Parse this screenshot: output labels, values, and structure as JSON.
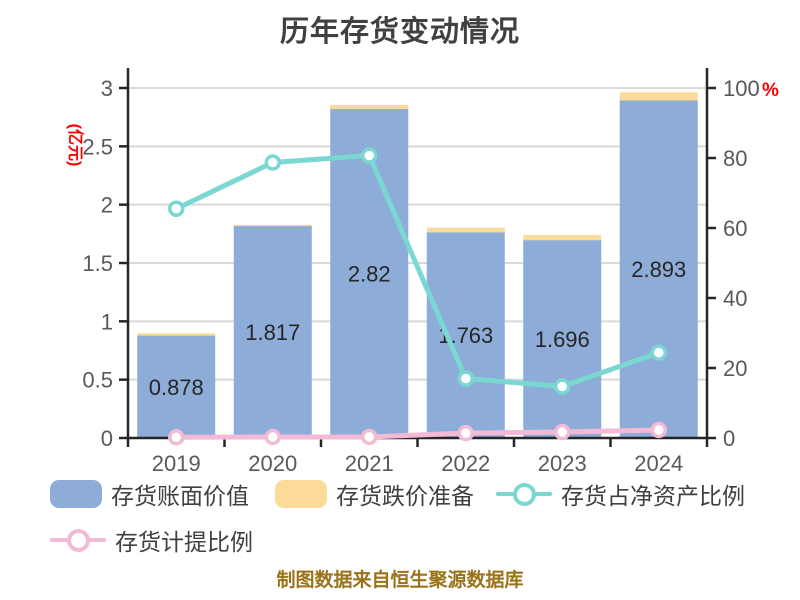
{
  "title": "历年存货变动情况",
  "footer": "制图数据来自恒生聚源数据库",
  "colors": {
    "bar_blue": "#8DACD8",
    "bar_orange": "#FBDB97",
    "line_teal": "#7AD7D1",
    "line_pink": "#F3BAD6",
    "axis": "#262626",
    "grid": "#D9D9D9",
    "tick_text": "#595959",
    "unit_red": "#FF0000",
    "title_text": "#404040",
    "footer_gold": "#9A7318"
  },
  "chart_data": {
    "type": "bar",
    "subtype": "bars-with-lines-dual-axis",
    "title": "历年存货变动情况",
    "categories": [
      "2019",
      "2020",
      "2021",
      "2022",
      "2023",
      "2024"
    ],
    "series": [
      {
        "name": "存货账面价值",
        "type": "bar",
        "axis": "left",
        "values": [
          0.878,
          1.817,
          2.82,
          1.763,
          1.696,
          2.893
        ],
        "labels": [
          "0.878",
          "1.817",
          "2.82",
          "1.763",
          "1.696",
          "2.893"
        ]
      },
      {
        "name": "存货跌价准备",
        "type": "bar-stacked",
        "axis": "left",
        "values": [
          0.02,
          0.01,
          0.035,
          0.04,
          0.045,
          0.07
        ]
      },
      {
        "name": "存货占净资产比例",
        "type": "line",
        "axis": "right",
        "values": [
          65.5,
          78.7,
          80.7,
          17.0,
          14.7,
          24.4
        ]
      },
      {
        "name": "存货计提比例",
        "type": "line",
        "axis": "right",
        "values": [
          0.2,
          0.3,
          0.3,
          1.4,
          1.7,
          2.3
        ]
      }
    ],
    "left_axis": {
      "label": "(亿元)",
      "min": 0,
      "max": 3,
      "ticks": [
        0,
        0.5,
        1,
        1.5,
        2,
        2.5,
        3
      ],
      "tick_labels": [
        "0",
        "0.5",
        "1",
        "1.5",
        "2",
        "2.5",
        "3"
      ]
    },
    "right_axis": {
      "label": "%",
      "min": 0,
      "max": 100,
      "ticks": [
        0,
        20,
        40,
        60,
        80,
        100
      ],
      "tick_labels": [
        "0",
        "20",
        "40",
        "60",
        "80",
        "100"
      ]
    },
    "grid": true,
    "legend_position": "bottom"
  },
  "legend": {
    "items": [
      {
        "label": "存货账面价值",
        "marker": "rect",
        "color": "bar_blue"
      },
      {
        "label": "存货跌价准备",
        "marker": "rect",
        "color": "bar_orange"
      },
      {
        "label": "存货占净资产比例",
        "marker": "line-dot",
        "color": "line_teal"
      },
      {
        "label": "存货计提比例",
        "marker": "line-dot",
        "color": "line_pink"
      }
    ]
  }
}
